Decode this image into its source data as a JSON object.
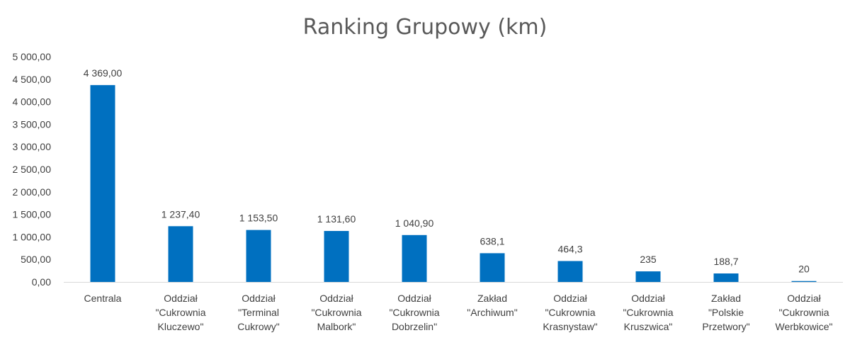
{
  "chart_data": {
    "type": "bar",
    "title": "Ranking Grupowy (km)",
    "xlabel": "",
    "ylabel": "",
    "ylim": [
      0,
      5000
    ],
    "yticks": [
      "0,00",
      "500,00",
      "1 000,00",
      "1 500,00",
      "2 000,00",
      "2 500,00",
      "3 000,00",
      "3 500,00",
      "4 000,00",
      "4 500,00",
      "5 000,00"
    ],
    "grid": false,
    "legend": "none",
    "bar_color": "#0070C0",
    "categories": [
      [
        "Centrala"
      ],
      [
        "Oddział",
        "\"Cukrownia",
        "Kluczewo\""
      ],
      [
        "Oddział",
        "\"Terminal",
        "Cukrowy\""
      ],
      [
        "Oddział",
        "\"Cukrownia",
        "Malbork\""
      ],
      [
        "Oddział",
        "\"Cukrownia",
        "Dobrzelin\""
      ],
      [
        "Zakład",
        "\"Archiwum\""
      ],
      [
        "Oddział",
        "\"Cukrownia",
        "Krasnystaw\""
      ],
      [
        "Oddział",
        "\"Cukrownia",
        "Kruszwica\""
      ],
      [
        "Zakład",
        "\"Polskie",
        "Przetwory\""
      ],
      [
        "Oddział",
        "\"Cukrownia",
        "Werbkowice\""
      ]
    ],
    "values": [
      4369.0,
      1237.4,
      1153.5,
      1131.6,
      1040.9,
      638.1,
      464.3,
      235,
      188.7,
      20
    ],
    "data_labels": [
      "4 369,00",
      "1 237,40",
      "1 153,50",
      "1 131,60",
      "1 040,90",
      "638,1",
      "464,3",
      "235",
      "188,7",
      "20"
    ]
  }
}
